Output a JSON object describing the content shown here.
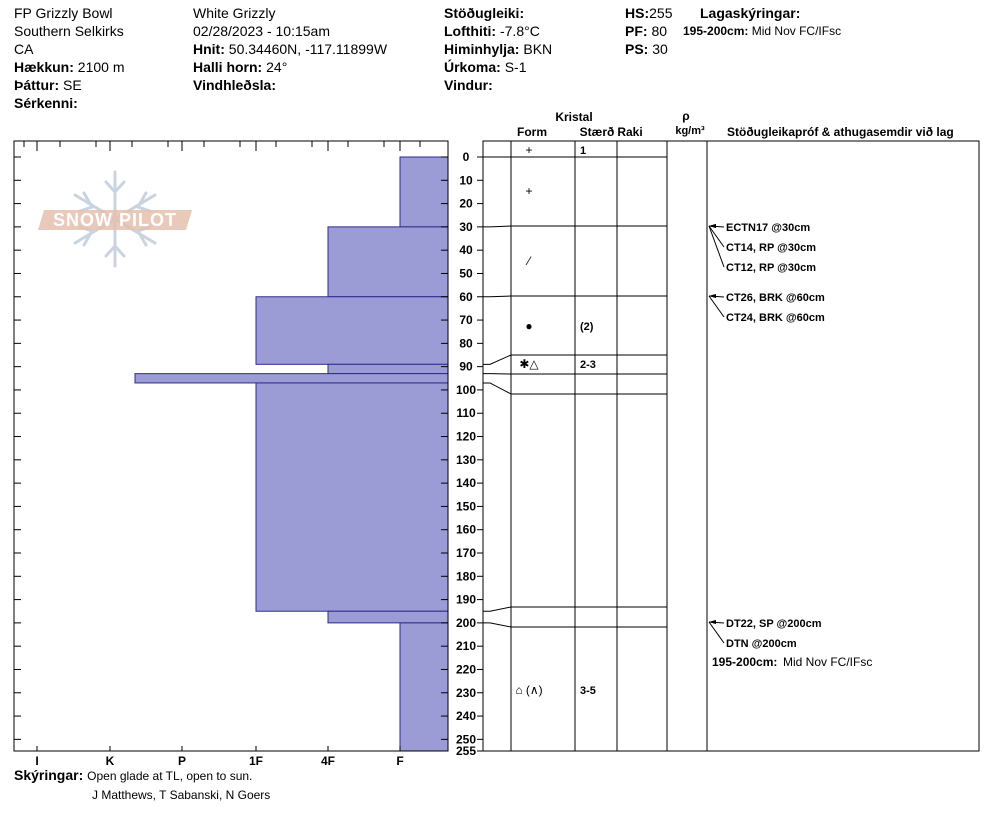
{
  "site": {
    "name": "FP Grizzly Bowl",
    "range": "Southern Selkirks",
    "country": "CA",
    "elevation_label": "Hækkun:",
    "elevation": "2100 m",
    "aspect_label": "Þáttur:",
    "aspect": "SE",
    "special_label": "Sérkenni:"
  },
  "obs": {
    "location": "White Grizzly",
    "datetime": "02/28/2023 - 10:15am",
    "coords_label": "Hnit:",
    "coords": "50.34460N, -117.11899W",
    "slope_label": "Halli horn:",
    "slope": "24°",
    "wind_load_label": "Vindhleðsla:"
  },
  "weather": {
    "stability_label": "Stöðugleiki:",
    "air_temp_label": "Lofthiti:",
    "air_temp": "-7.8°C",
    "sky_label": "Himinhylja:",
    "sky": "BKN",
    "precip_label": "Úrkoma:",
    "precip": "S-1",
    "wind_label": "Vindur:"
  },
  "depths": {
    "hs_label": "HS:",
    "hs": "255",
    "pf_label": "PF:",
    "pf": "80",
    "ps_label": "PS:",
    "ps": "30"
  },
  "layers_legend": {
    "title": "Lagaskýringar:",
    "range": "195-200cm:",
    "desc": "Mid Nov FC/IFsc"
  },
  "logo_text": "SNOW PILOT",
  "table_headers": {
    "crystal": "Kristal",
    "form": "Form",
    "size": "Stærð",
    "moisture": "Raki",
    "rho": "ρ",
    "density_unit": "kg/m³",
    "tests": "Stöðugleikapróf & athugasemdir við lag"
  },
  "comments_label": "Skýringar:",
  "comments": "Open glade at TL, open to sun.",
  "observers": "J Matthews, T Sabanski, N Goers",
  "colors": {
    "fill": "#9b9bd6",
    "stroke": "#2c2c8c"
  },
  "chart_data": {
    "type": "bar",
    "orientation": "horizontal",
    "depth_axis": {
      "min": 0,
      "max": 255,
      "ticks": [
        0,
        10,
        20,
        30,
        40,
        50,
        60,
        70,
        80,
        90,
        100,
        110,
        120,
        130,
        140,
        150,
        160,
        170,
        180,
        190,
        200,
        210,
        220,
        230,
        240,
        250,
        255
      ]
    },
    "hardness_axis": {
      "labels": [
        "I",
        "K",
        "P",
        "1F",
        "4F",
        "F"
      ],
      "order": "hard-to-soft, left-to-right"
    },
    "layers": [
      {
        "top": 0,
        "bottom": 30,
        "hardness": "F"
      },
      {
        "top": 30,
        "bottom": 60,
        "hardness": "4F"
      },
      {
        "top": 60,
        "bottom": 89,
        "hardness": "1F"
      },
      {
        "top": 89,
        "bottom": 93,
        "hardness": "4F"
      },
      {
        "top": 93,
        "bottom": 97,
        "hardness": "K+"
      },
      {
        "top": 97,
        "bottom": 195,
        "hardness": "1F"
      },
      {
        "top": 195,
        "bottom": 200,
        "hardness": "4F"
      },
      {
        "top": 200,
        "bottom": 255,
        "hardness": "F"
      }
    ],
    "crystals": [
      {
        "depth": 3,
        "form": "+",
        "size": "1"
      },
      {
        "depth": 15,
        "form": "+",
        "size": ""
      },
      {
        "depth": 45,
        "form": "⁄",
        "size": ""
      },
      {
        "depth": 72,
        "form": "●",
        "size": "(2)"
      },
      {
        "depth": 89,
        "form": "✱△",
        "size": "2-3"
      },
      {
        "depth": 230,
        "form": "⌂ (∧)",
        "size": "3-5"
      }
    ],
    "tests": [
      {
        "depth": 30,
        "text": "ECTN17 @30cm"
      },
      {
        "depth": 30,
        "text": "CT14, RP @30cm"
      },
      {
        "depth": 30,
        "text": "CT12, RP @30cm"
      },
      {
        "depth": 60,
        "text": "CT26, BRK @60cm"
      },
      {
        "depth": 60,
        "text": "CT24, BRK @60cm"
      },
      {
        "depth": 200,
        "text": "DT22, SP @200cm"
      },
      {
        "depth": 200,
        "text": "DTN @200cm"
      }
    ],
    "layer_note": {
      "range": "195-200cm:",
      "desc": "Mid Nov FC/IFsc"
    }
  }
}
